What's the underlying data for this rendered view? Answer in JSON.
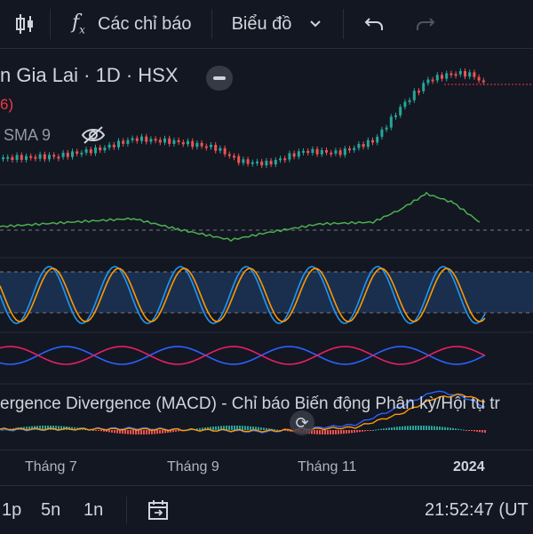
{
  "toolbar": {
    "indicators_label": "Các chỉ báo",
    "chart_label": "Biểu đồ"
  },
  "symbol": {
    "title": "n Gia Lai · 1D · HSX",
    "sub_value": "6)"
  },
  "overlay": {
    "sma_label": "SMA 9"
  },
  "macd": {
    "label": "ergence Divergence (MACD) - Chỉ báo Biến động Phân kỳ/Hội tụ tr"
  },
  "xaxis": {
    "labels": [
      "Tháng 7",
      "Tháng 9",
      "Tháng 11",
      "2024"
    ]
  },
  "bottom": {
    "ranges": [
      "1p",
      "5n",
      "1n"
    ],
    "time": "21:52:47 (UT"
  },
  "colors": {
    "bg": "#131722",
    "up": "#26a69a",
    "down": "#ef5350",
    "green_line": "#4caf50",
    "blue": "#2962ff",
    "orange": "#ff9800",
    "pink": "#e91e63"
  }
}
